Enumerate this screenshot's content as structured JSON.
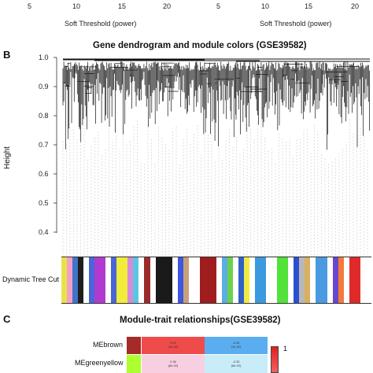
{
  "top_strip": {
    "left_ticks": [
      "5",
      "10",
      "15",
      "20"
    ],
    "right_ticks": [
      "5",
      "10",
      "15",
      "20"
    ],
    "left_xlabel": "Soft Threshold (power)",
    "right_xlabel": "Soft Threshold (power)"
  },
  "panel_b": {
    "letter": "B",
    "title": "Gene dendrogram and module colors (GSE39582)",
    "ylabel": "Height",
    "yticks": [
      "1.0",
      "0.9",
      "0.8",
      "0.7",
      "0.6",
      "0.5",
      "0.4"
    ],
    "colorbar_label": "Dynamic Tree Cut",
    "module_colors": [
      "#e8e24a",
      "#f2a0c8",
      "#3f74c8",
      "#1e1e1e",
      "#ffffff",
      "#4a66d6",
      "#b03ad0",
      "#b03ad0",
      "#ffffff",
      "#4a66d6",
      "#f2ec3a",
      "#f2ec3a",
      "#d68bd8",
      "#5cc6e0",
      "#ffffff",
      "#9b2b2b",
      "#ffffff",
      "#1a1a1a",
      "#1a1a1a",
      "#1a1a1a",
      "#ffffff",
      "#3e56e0",
      "#c8a07a",
      "#ffffff",
      "#ffffff",
      "#a01d1d",
      "#a01d1d",
      "#a01d1d",
      "#ffffff",
      "#5aaee0",
      "#6ad24a",
      "#ffffff",
      "#2f62c6",
      "#f0ea45",
      "#ffffff",
      "#3a9ae0",
      "#3a9ae0",
      "#ffffff",
      "#ffffff",
      "#52e23a",
      "#52e23a",
      "#ffffff",
      "#2a50d0",
      "#b8b8b8",
      "#d8b060",
      "#ffffff",
      "#4a9ae2",
      "#4a9ae2",
      "#ffffff",
      "#6a46d0",
      "#f27a3a",
      "#ffffff",
      "#e02a2a",
      "#e02a2a",
      "#ffffff",
      "#ffffff"
    ]
  },
  "panel_c": {
    "letter": "C",
    "title": "Module-trait relationships(GSE39582)",
    "rows": [
      {
        "name": "MEbrown",
        "color": "#a52a2a",
        "cells": [
          {
            "line1": "0.49",
            "line2": "(1e-02)",
            "color": "#ef4b4b"
          },
          {
            "line1": "-0.49",
            "line2": "(1e-02)",
            "color": "#5aaef0"
          }
        ]
      },
      {
        "name": "MEgreenyellow",
        "color": "#adff2f",
        "cells": [
          {
            "line1": "0.36",
            "line2": "(6e-02)",
            "color": "#f8cfe0"
          },
          {
            "line1": "-0.33",
            "line2": "(6e-02)",
            "color": "#c8ecf8"
          }
        ]
      }
    ],
    "scale_top_label": "1"
  }
}
